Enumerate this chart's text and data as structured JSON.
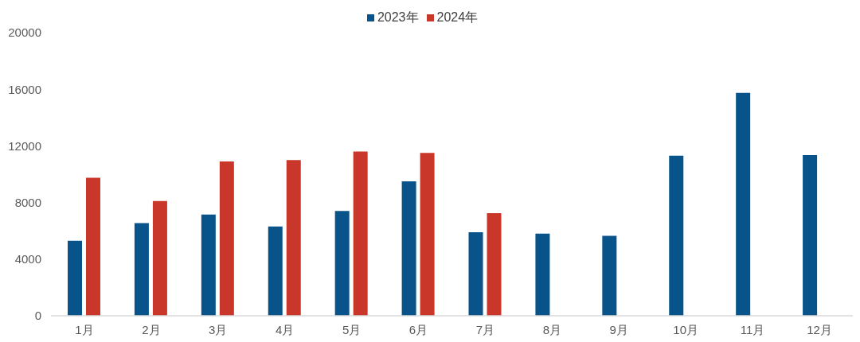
{
  "chart_data": {
    "type": "bar",
    "categories": [
      "1月",
      "2月",
      "3月",
      "4月",
      "5月",
      "6月",
      "7月",
      "8月",
      "9月",
      "10月",
      "11月",
      "12月"
    ],
    "series": [
      {
        "name": "2023年",
        "color": "#08548a",
        "values": [
          5300,
          6550,
          7150,
          6300,
          7400,
          9500,
          5900,
          5800,
          5650,
          11300,
          15750,
          11350
        ]
      },
      {
        "name": "2024年",
        "color": "#c9372a",
        "values": [
          9750,
          8100,
          10900,
          11000,
          11600,
          11500,
          7250,
          null,
          null,
          null,
          null,
          null
        ]
      }
    ],
    "ylim": [
      0,
      20000
    ],
    "yticks": [
      0,
      4000,
      8000,
      12000,
      16000,
      20000
    ],
    "legend": "top"
  }
}
